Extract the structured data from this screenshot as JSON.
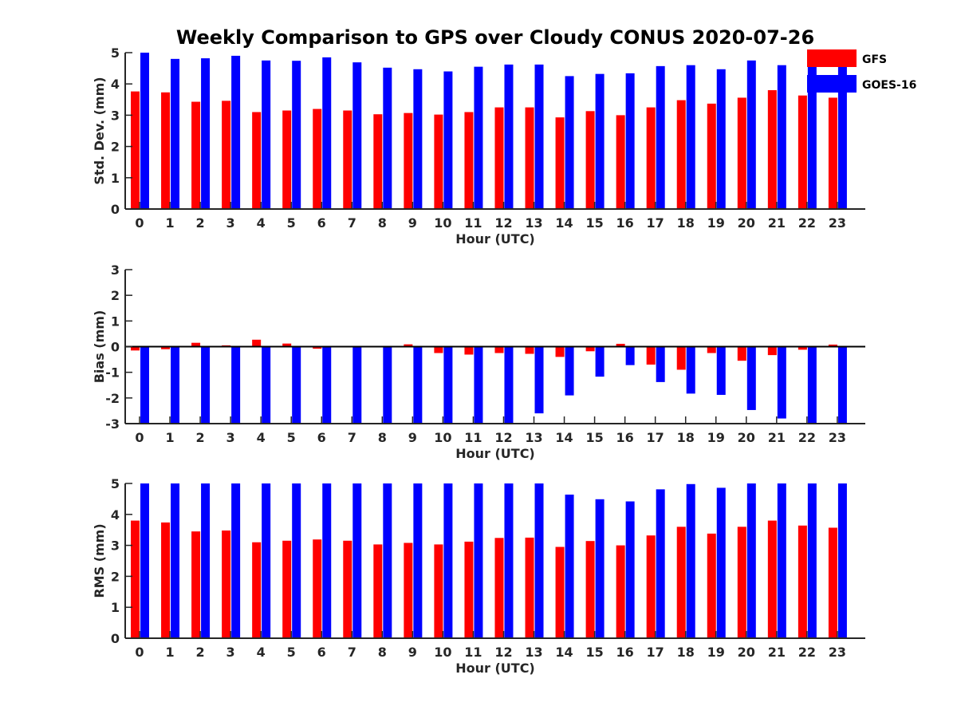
{
  "chart_data": {
    "title": "Weekly Comparison to GPS over Cloudy CONUS 2020-07-26",
    "type": "bar",
    "colors": {
      "GFS": "#ff0000",
      "GOES-16": "#0000ff"
    },
    "legend": {
      "placement": "top-right",
      "entries": [
        {
          "name": "GFS",
          "color": "#ff0000"
        },
        {
          "name": "GOES-16",
          "color": "#0000ff"
        }
      ]
    },
    "panels": [
      {
        "id": "stddev",
        "type": "bar",
        "xlabel": "Hour (UTC)",
        "ylabel": "Std. Dev. (mm)",
        "ylim": [
          0,
          5
        ],
        "yticks": [
          0,
          1,
          2,
          3,
          4,
          5
        ],
        "categories": [
          "0",
          "1",
          "2",
          "3",
          "4",
          "5",
          "6",
          "7",
          "8",
          "9",
          "10",
          "11",
          "12",
          "13",
          "14",
          "15",
          "16",
          "17",
          "18",
          "19",
          "20",
          "21",
          "22",
          "23"
        ],
        "series": [
          {
            "name": "GFS",
            "color": "#ff0000",
            "values": [
              3.76,
              3.73,
              3.43,
              3.46,
              3.1,
              3.15,
              3.2,
              3.15,
              3.03,
              3.07,
              3.02,
              3.1,
              3.25,
              3.25,
              2.93,
              3.13,
              3.0,
              3.25,
              3.48,
              3.37,
              3.56,
              3.8,
              3.63,
              3.56
            ]
          },
          {
            "name": "GOES-16",
            "color": "#0000ff",
            "values": [
              5.0,
              4.8,
              4.82,
              4.9,
              4.75,
              4.74,
              4.85,
              4.69,
              4.52,
              4.47,
              4.4,
              4.55,
              4.62,
              4.62,
              4.25,
              4.32,
              4.34,
              4.57,
              4.6,
              4.47,
              4.75,
              4.6,
              4.7,
              4.65
            ]
          }
        ]
      },
      {
        "id": "bias",
        "type": "bar",
        "xlabel": "Hour (UTC)",
        "ylabel": "Bias (mm)",
        "ylim": [
          -3,
          3
        ],
        "yticks": [
          -3,
          -2,
          -1,
          0,
          1,
          2,
          3
        ],
        "zero_line": true,
        "categories": [
          "0",
          "1",
          "2",
          "3",
          "4",
          "5",
          "6",
          "7",
          "8",
          "9",
          "10",
          "11",
          "12",
          "13",
          "14",
          "15",
          "16",
          "17",
          "18",
          "19",
          "20",
          "21",
          "22",
          "23"
        ],
        "series": [
          {
            "name": "GFS",
            "color": "#ff0000",
            "values": [
              -0.15,
              -0.1,
              0.15,
              0.05,
              0.27,
              0.12,
              -0.08,
              0.0,
              0.01,
              0.09,
              -0.25,
              -0.31,
              -0.25,
              -0.28,
              -0.4,
              -0.18,
              0.11,
              -0.7,
              -0.9,
              -0.25,
              -0.55,
              -0.33,
              -0.12,
              0.08
            ]
          },
          {
            "name": "GOES-16",
            "color": "#0000ff",
            "values": [
              -3.0,
              -3.0,
              -3.0,
              -3.0,
              -3.0,
              -3.0,
              -3.0,
              -3.0,
              -3.0,
              -3.0,
              -3.0,
              -3.0,
              -3.0,
              -2.6,
              -1.9,
              -1.17,
              -0.72,
              -1.38,
              -1.83,
              -1.88,
              -2.47,
              -2.8,
              -3.0,
              -3.0
            ]
          }
        ]
      },
      {
        "id": "rms",
        "type": "bar",
        "xlabel": "Hour (UTC)",
        "ylabel": "RMS (mm)",
        "ylim": [
          0,
          5
        ],
        "yticks": [
          0,
          1,
          2,
          3,
          4,
          5
        ],
        "categories": [
          "0",
          "1",
          "2",
          "3",
          "4",
          "5",
          "6",
          "7",
          "8",
          "9",
          "10",
          "11",
          "12",
          "13",
          "14",
          "15",
          "16",
          "17",
          "18",
          "19",
          "20",
          "21",
          "22",
          "23"
        ],
        "series": [
          {
            "name": "GFS",
            "color": "#ff0000",
            "values": [
              3.8,
              3.74,
              3.45,
              3.48,
              3.1,
              3.15,
              3.19,
              3.15,
              3.03,
              3.08,
              3.03,
              3.12,
              3.24,
              3.25,
              2.95,
              3.14,
              3.0,
              3.32,
              3.6,
              3.38,
              3.6,
              3.8,
              3.64,
              3.57
            ]
          },
          {
            "name": "GOES-16",
            "color": "#0000ff",
            "values": [
              5.0,
              5.0,
              5.0,
              5.0,
              5.0,
              5.0,
              5.0,
              5.0,
              5.0,
              5.0,
              5.0,
              5.0,
              5.0,
              5.0,
              4.64,
              4.49,
              4.42,
              4.81,
              4.98,
              4.86,
              5.0,
              5.0,
              5.0,
              5.0
            ]
          }
        ]
      }
    ]
  }
}
